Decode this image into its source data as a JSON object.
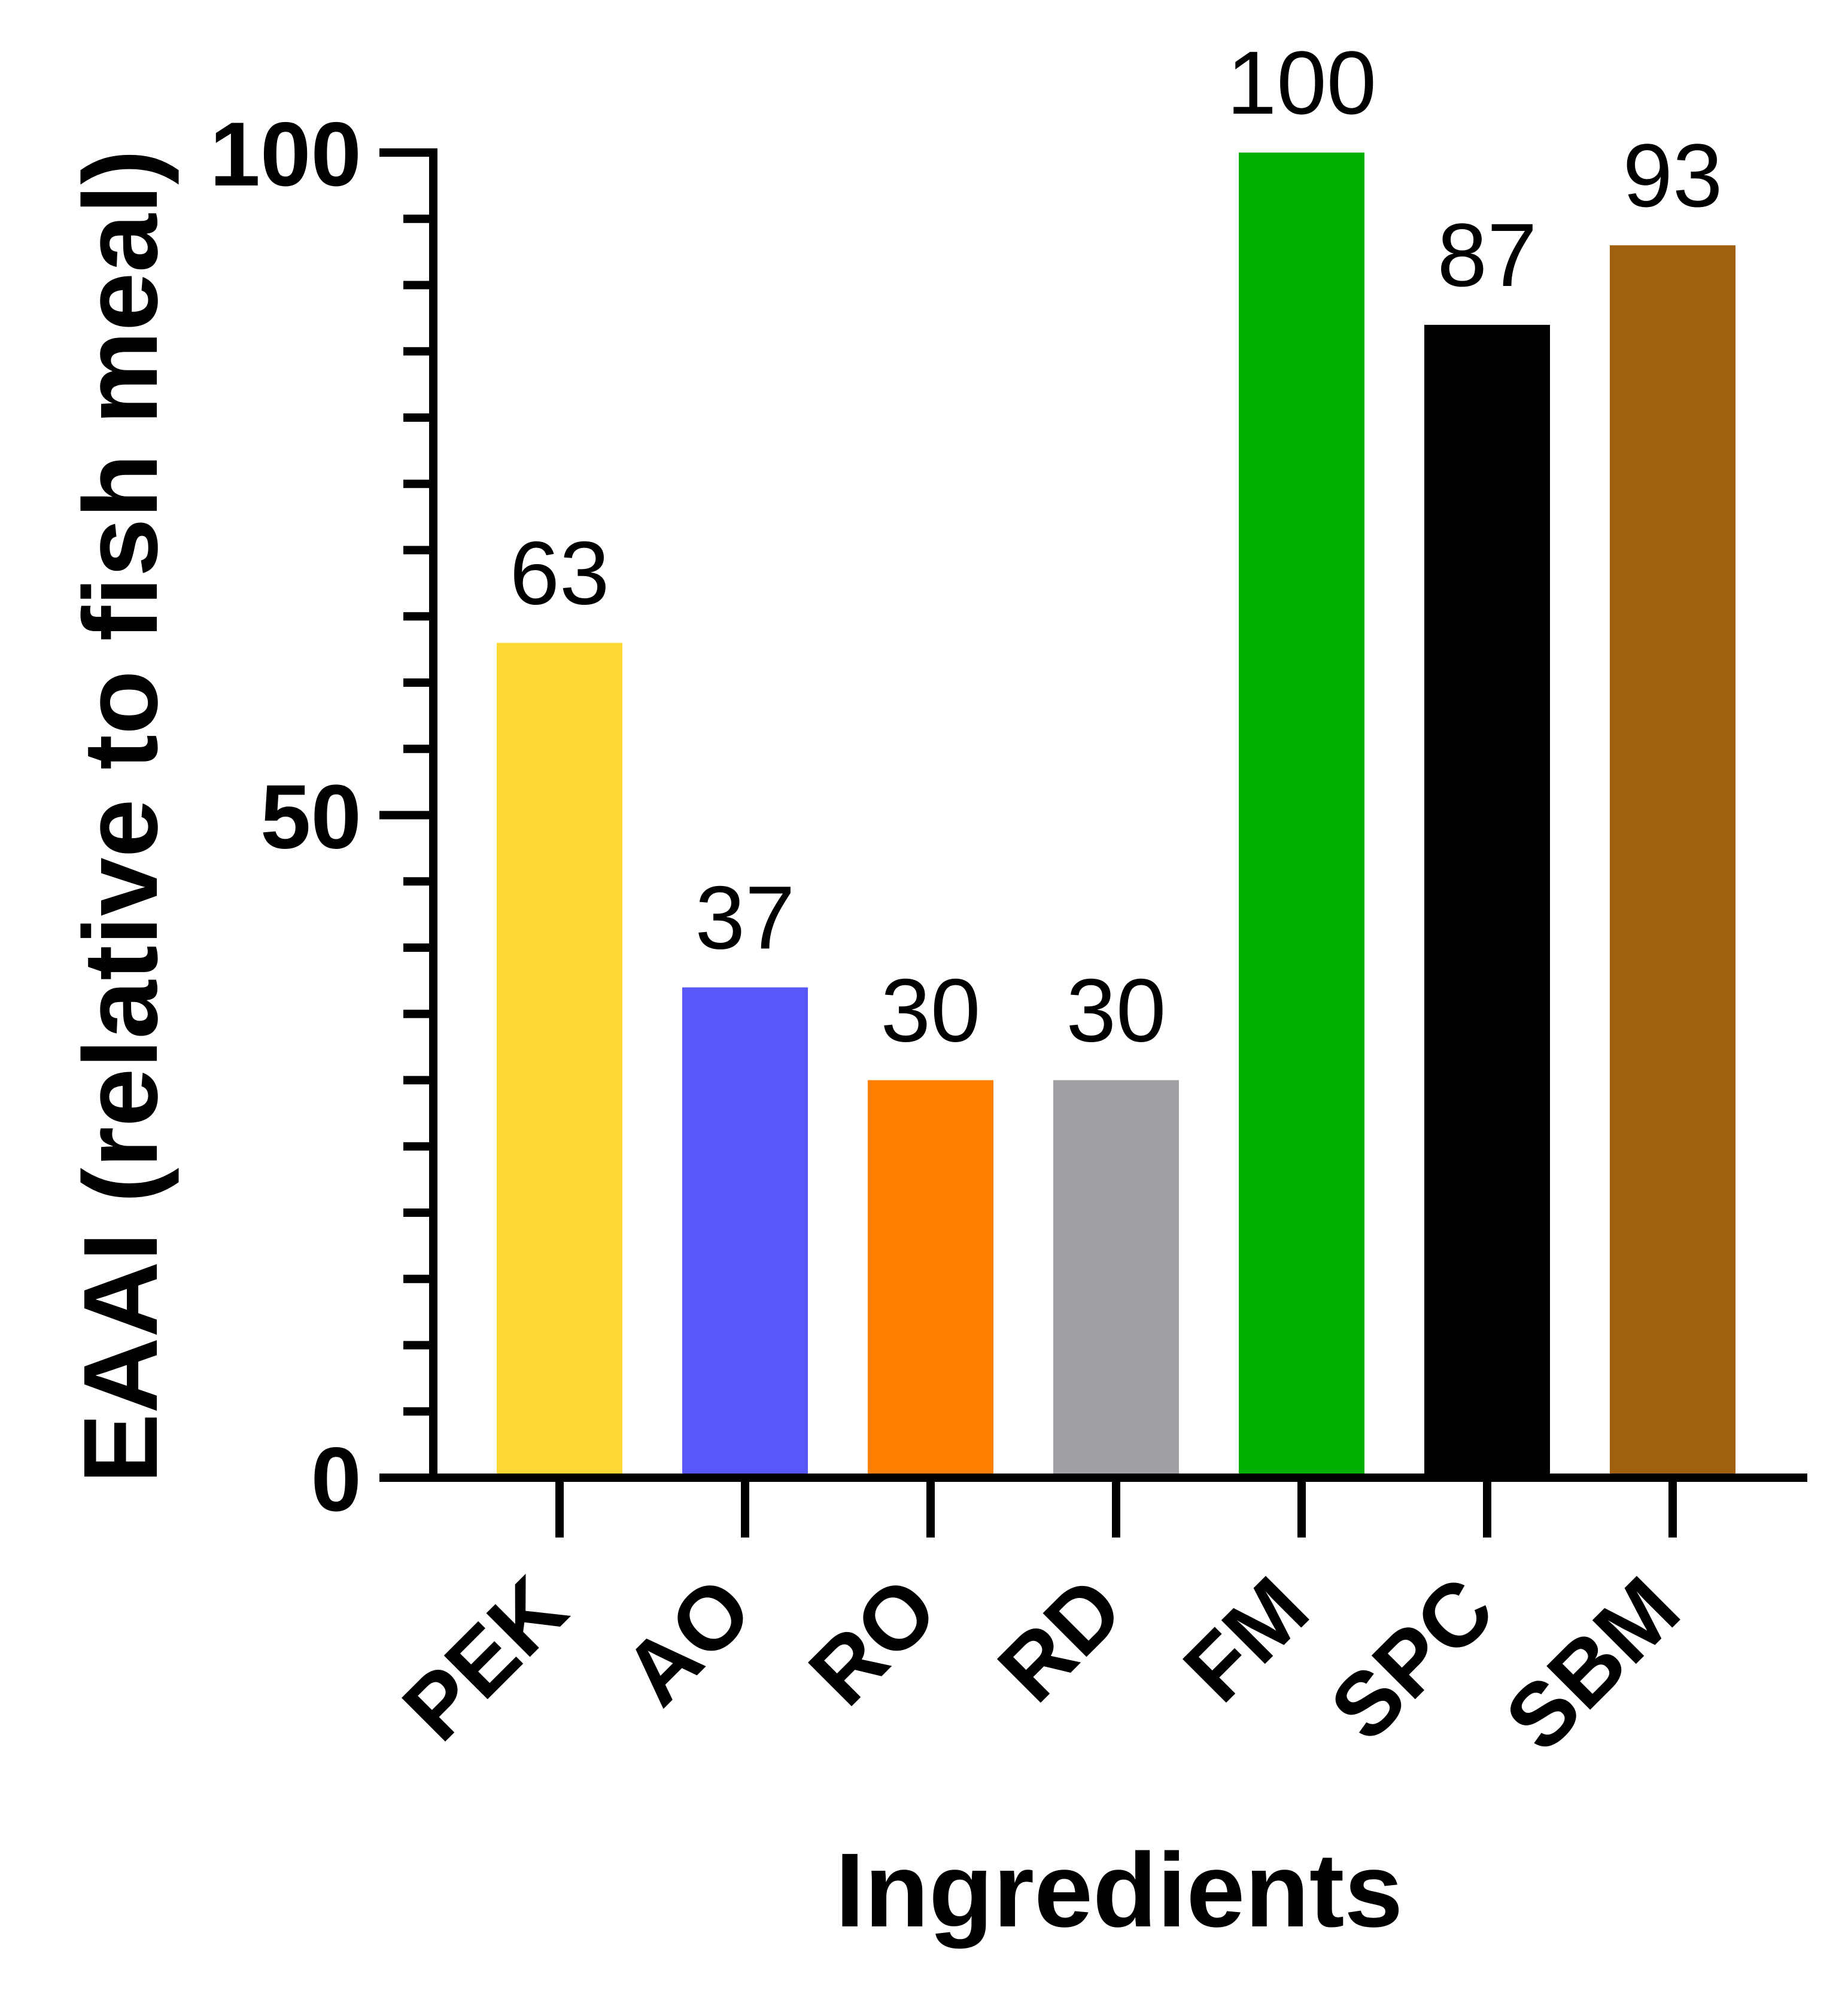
{
  "chart_data": {
    "type": "bar",
    "title": "",
    "xlabel": "Ingredients",
    "ylabel": "EAAI (relative to fish meal)",
    "ylim": [
      0,
      100
    ],
    "major_ticks": [
      0,
      50,
      100
    ],
    "minor_tick_step": 5,
    "grid": false,
    "categories": [
      "PEK",
      "AO",
      "RO",
      "RD",
      "FM",
      "SPC",
      "SBM"
    ],
    "values": [
      63,
      37,
      30,
      30,
      100,
      87,
      93
    ],
    "value_labels": [
      "63",
      "37",
      "30",
      "30",
      "100",
      "87",
      "93"
    ],
    "bar_colors": [
      "#FCD835",
      "#5858FA",
      "#FF8000",
      "#A0A0A4",
      "#00B000",
      "#000000",
      "#A06010"
    ]
  }
}
